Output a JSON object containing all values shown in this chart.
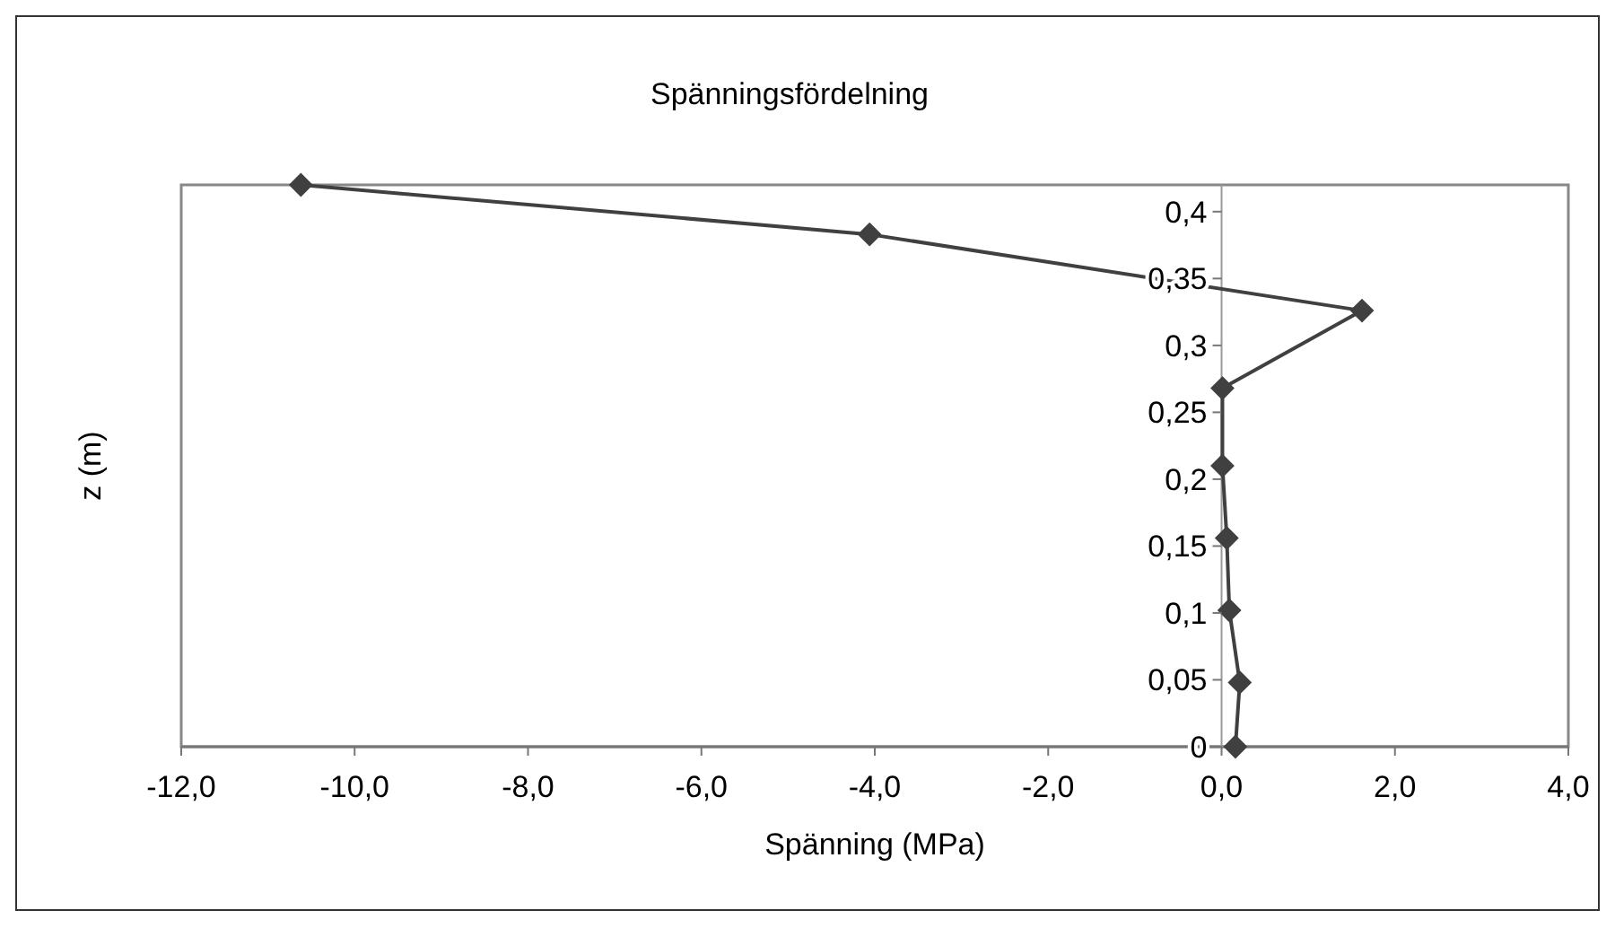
{
  "chart_data": {
    "type": "line",
    "title": "Spänningsfördelning",
    "xlabel": "Spänning (MPa)",
    "ylabel": "z (m)",
    "series": [
      {
        "color": "#404040",
        "x": [
          0.16,
          0.21,
          0.09,
          0.06,
          0.01,
          0.01,
          1.62,
          -4.06,
          -10.62
        ],
        "values": [
          0,
          0.048,
          0.102,
          0.156,
          0.21,
          0.268,
          0.326,
          0.383,
          0.42
        ]
      }
    ],
    "xlim": [
      -12,
      4
    ],
    "xticks": [
      {
        "value": -12,
        "label": "-12,0"
      },
      {
        "value": -10,
        "label": "-10,0"
      },
      {
        "value": -8,
        "label": "-8,0"
      },
      {
        "value": -6,
        "label": "-6,0"
      },
      {
        "value": -4,
        "label": "-4,0"
      },
      {
        "value": -2,
        "label": "-2,0"
      },
      {
        "value": 0,
        "label": "0,0"
      },
      {
        "value": 2,
        "label": "2,0"
      },
      {
        "value": 4,
        "label": "4,0"
      }
    ],
    "ylim": [
      0,
      0.42
    ],
    "yticks": [
      0,
      {
        "value": 0.05,
        "label": "0,05"
      },
      {
        "value": 0.1,
        "label": "0,1"
      },
      {
        "value": 0.15,
        "label": "0,15"
      },
      {
        "value": 0.2,
        "label": "0,2"
      },
      {
        "value": 0.25,
        "label": "0,25"
      },
      {
        "value": 0.3,
        "label": "0,3"
      },
      {
        "value": 0.35,
        "label": "0,35"
      },
      {
        "value": 0.4,
        "label": "0,4"
      }
    ],
    "marker": "diamond",
    "line_style": "solid",
    "grid": false
  }
}
